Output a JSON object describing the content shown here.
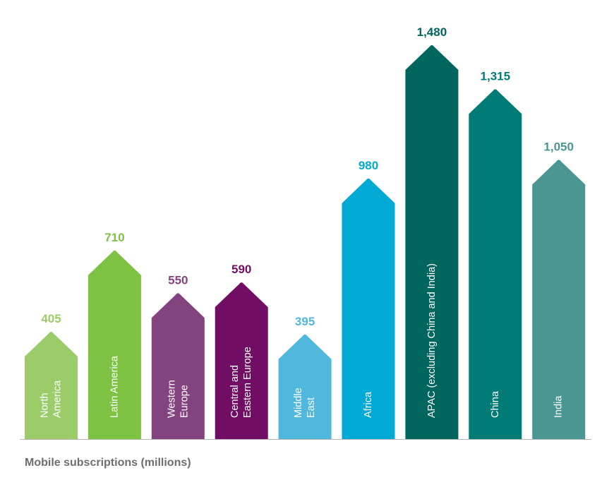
{
  "chart_data": {
    "type": "bar",
    "title": "",
    "xlabel": "",
    "ylabel": "",
    "caption": "Mobile subscriptions (millions)",
    "ylim": [
      0,
      1480
    ],
    "grid": false,
    "categories": [
      [
        "North",
        "America"
      ],
      [
        "Latin America"
      ],
      [
        "Western",
        "Europe"
      ],
      [
        "Central and",
        "Eastern Europe"
      ],
      [
        "Middle",
        "East"
      ],
      [
        "Africa"
      ],
      [
        "APAC (excluding China and India)"
      ],
      [
        "China"
      ],
      [
        "India"
      ]
    ],
    "values": [
      405,
      710,
      550,
      590,
      395,
      980,
      1480,
      1315,
      1050
    ],
    "value_labels": [
      "405",
      "710",
      "550",
      "590",
      "395",
      "980",
      "1,480",
      "1,315",
      "1,050"
    ],
    "bar_colors": [
      "#9ccc6a",
      "#7dc242",
      "#83437f",
      "#720d66",
      "#4fb8dc",
      "#00aad5",
      "#00665e",
      "#007b75",
      "#4a9693"
    ],
    "label_colors": [
      "#9ccc6a",
      "#7dc242",
      "#83437f",
      "#720d66",
      "#4fb8dc",
      "#00aad5",
      "#00665e",
      "#007b75",
      "#4a9693"
    ],
    "baseline_color": "#b6b6b6",
    "caption_color": "#6d6e71"
  }
}
